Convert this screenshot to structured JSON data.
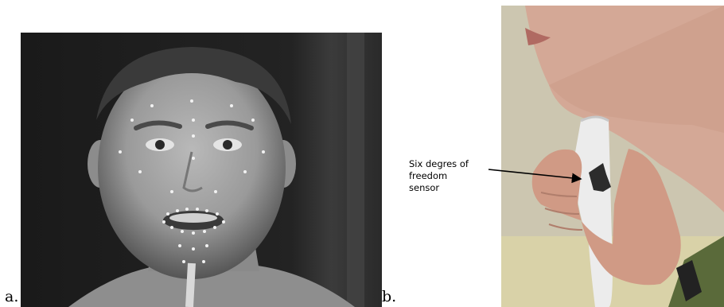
{
  "panels": [
    {
      "label": "a.",
      "icon": "face-motion-capture-photo"
    },
    {
      "label": "b.",
      "icon": "ultrasound-probe-photo"
    }
  ],
  "annotation": {
    "lines": [
      "Six degres of",
      "freedom",
      "sensor"
    ]
  }
}
